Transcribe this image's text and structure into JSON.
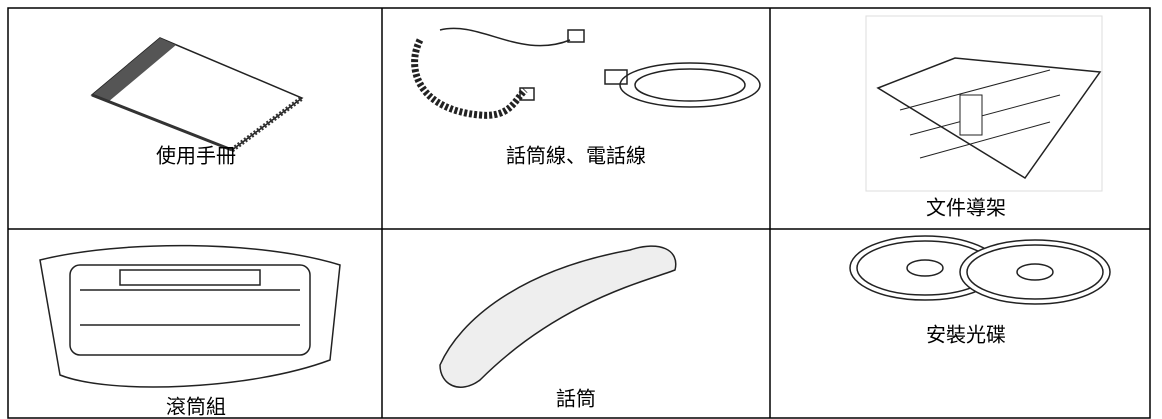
{
  "table": {
    "rows": [
      [
        "使用手冊",
        "話筒線、電話線",
        "文件導架"
      ],
      [
        "滾筒組",
        "話筒",
        "安裝光碟"
      ]
    ]
  }
}
